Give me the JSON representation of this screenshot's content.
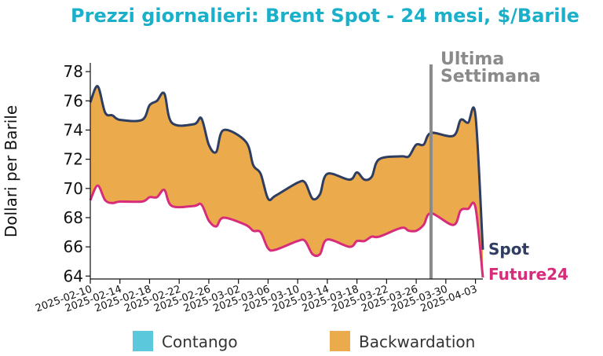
{
  "chart_data": {
    "type": "area",
    "title": "Prezzi giornalieri: Brent Spot - 24 mesi, $/Barile",
    "ylabel": "Dollari per Barile",
    "xlabel": "",
    "x_start": "2025-02-10",
    "x_end": "2025-04-04",
    "ylim": [
      63.8,
      78.6
    ],
    "y_ticks": [
      64,
      66,
      68,
      70,
      72,
      74,
      76,
      78
    ],
    "x_ticks": [
      "2025-02-10",
      "2025-02-14",
      "2025-02-18",
      "2025-02-22",
      "2025-02-26",
      "2025-03-02",
      "2025-03-06",
      "2025-03-10",
      "2025-03-14",
      "2025-03-18",
      "2025-03-22",
      "2025-03-26",
      "2025-03-30",
      "2025-04-03"
    ],
    "grid": false,
    "legend": {
      "placement": "bottom",
      "entries": [
        {
          "label": "Contango",
          "color": "#5bc8dc"
        },
        {
          "label": "Backwardation",
          "color": "#ebab4d"
        }
      ]
    },
    "vline": {
      "x": "2025-03-28",
      "label_line1": "Ultima",
      "label_line2": "Settimana",
      "color": "#8a8a8a"
    },
    "series": [
      {
        "name": "Spot",
        "color": "#2f3e60",
        "x": [
          "2025-02-10",
          "2025-02-11",
          "2025-02-12",
          "2025-02-13",
          "2025-02-14",
          "2025-02-17",
          "2025-02-18",
          "2025-02-19",
          "2025-02-20",
          "2025-02-21",
          "2025-02-24",
          "2025-02-25",
          "2025-02-26",
          "2025-02-27",
          "2025-02-28",
          "2025-03-03",
          "2025-03-04",
          "2025-03-05",
          "2025-03-06",
          "2025-03-07",
          "2025-03-10",
          "2025-03-11",
          "2025-03-12",
          "2025-03-13",
          "2025-03-14",
          "2025-03-17",
          "2025-03-18",
          "2025-03-19",
          "2025-03-20",
          "2025-03-21",
          "2025-03-24",
          "2025-03-25",
          "2025-03-26",
          "2025-03-27",
          "2025-03-28",
          "2025-03-31",
          "2025-04-01",
          "2025-04-02",
          "2025-04-03",
          "2025-04-04"
        ],
        "values": [
          75.9,
          77.0,
          75.2,
          75.0,
          74.7,
          74.7,
          75.7,
          76.0,
          76.5,
          74.5,
          74.4,
          74.8,
          73.0,
          72.5,
          74.0,
          73.2,
          71.6,
          71.0,
          69.3,
          69.5,
          70.4,
          70.4,
          69.3,
          69.6,
          71.0,
          70.6,
          71.1,
          70.6,
          70.8,
          72.0,
          72.2,
          72.2,
          73.0,
          73.0,
          73.8,
          73.6,
          74.7,
          74.5,
          75.0,
          65.8
        ]
      },
      {
        "name": "Future24",
        "color": "#d62c7a",
        "x": [
          "2025-02-10",
          "2025-02-11",
          "2025-02-12",
          "2025-02-13",
          "2025-02-14",
          "2025-02-17",
          "2025-02-18",
          "2025-02-19",
          "2025-02-20",
          "2025-02-21",
          "2025-02-24",
          "2025-02-25",
          "2025-02-26",
          "2025-02-27",
          "2025-02-28",
          "2025-03-03",
          "2025-03-04",
          "2025-03-05",
          "2025-03-06",
          "2025-03-07",
          "2025-03-10",
          "2025-03-11",
          "2025-03-12",
          "2025-03-13",
          "2025-03-14",
          "2025-03-17",
          "2025-03-18",
          "2025-03-19",
          "2025-03-20",
          "2025-03-21",
          "2025-03-24",
          "2025-03-25",
          "2025-03-26",
          "2025-03-27",
          "2025-03-28",
          "2025-03-31",
          "2025-04-01",
          "2025-04-02",
          "2025-04-03",
          "2025-04-04"
        ],
        "values": [
          69.2,
          70.2,
          69.2,
          69.0,
          69.1,
          69.1,
          69.4,
          69.4,
          69.9,
          68.8,
          68.8,
          68.9,
          67.8,
          67.4,
          68.0,
          67.5,
          67.1,
          67.0,
          65.9,
          65.8,
          66.4,
          66.4,
          65.5,
          65.5,
          66.5,
          66.0,
          66.4,
          66.4,
          66.7,
          66.7,
          67.3,
          67.1,
          67.1,
          67.5,
          68.3,
          67.5,
          68.5,
          68.6,
          68.7,
          63.9
        ]
      }
    ]
  }
}
